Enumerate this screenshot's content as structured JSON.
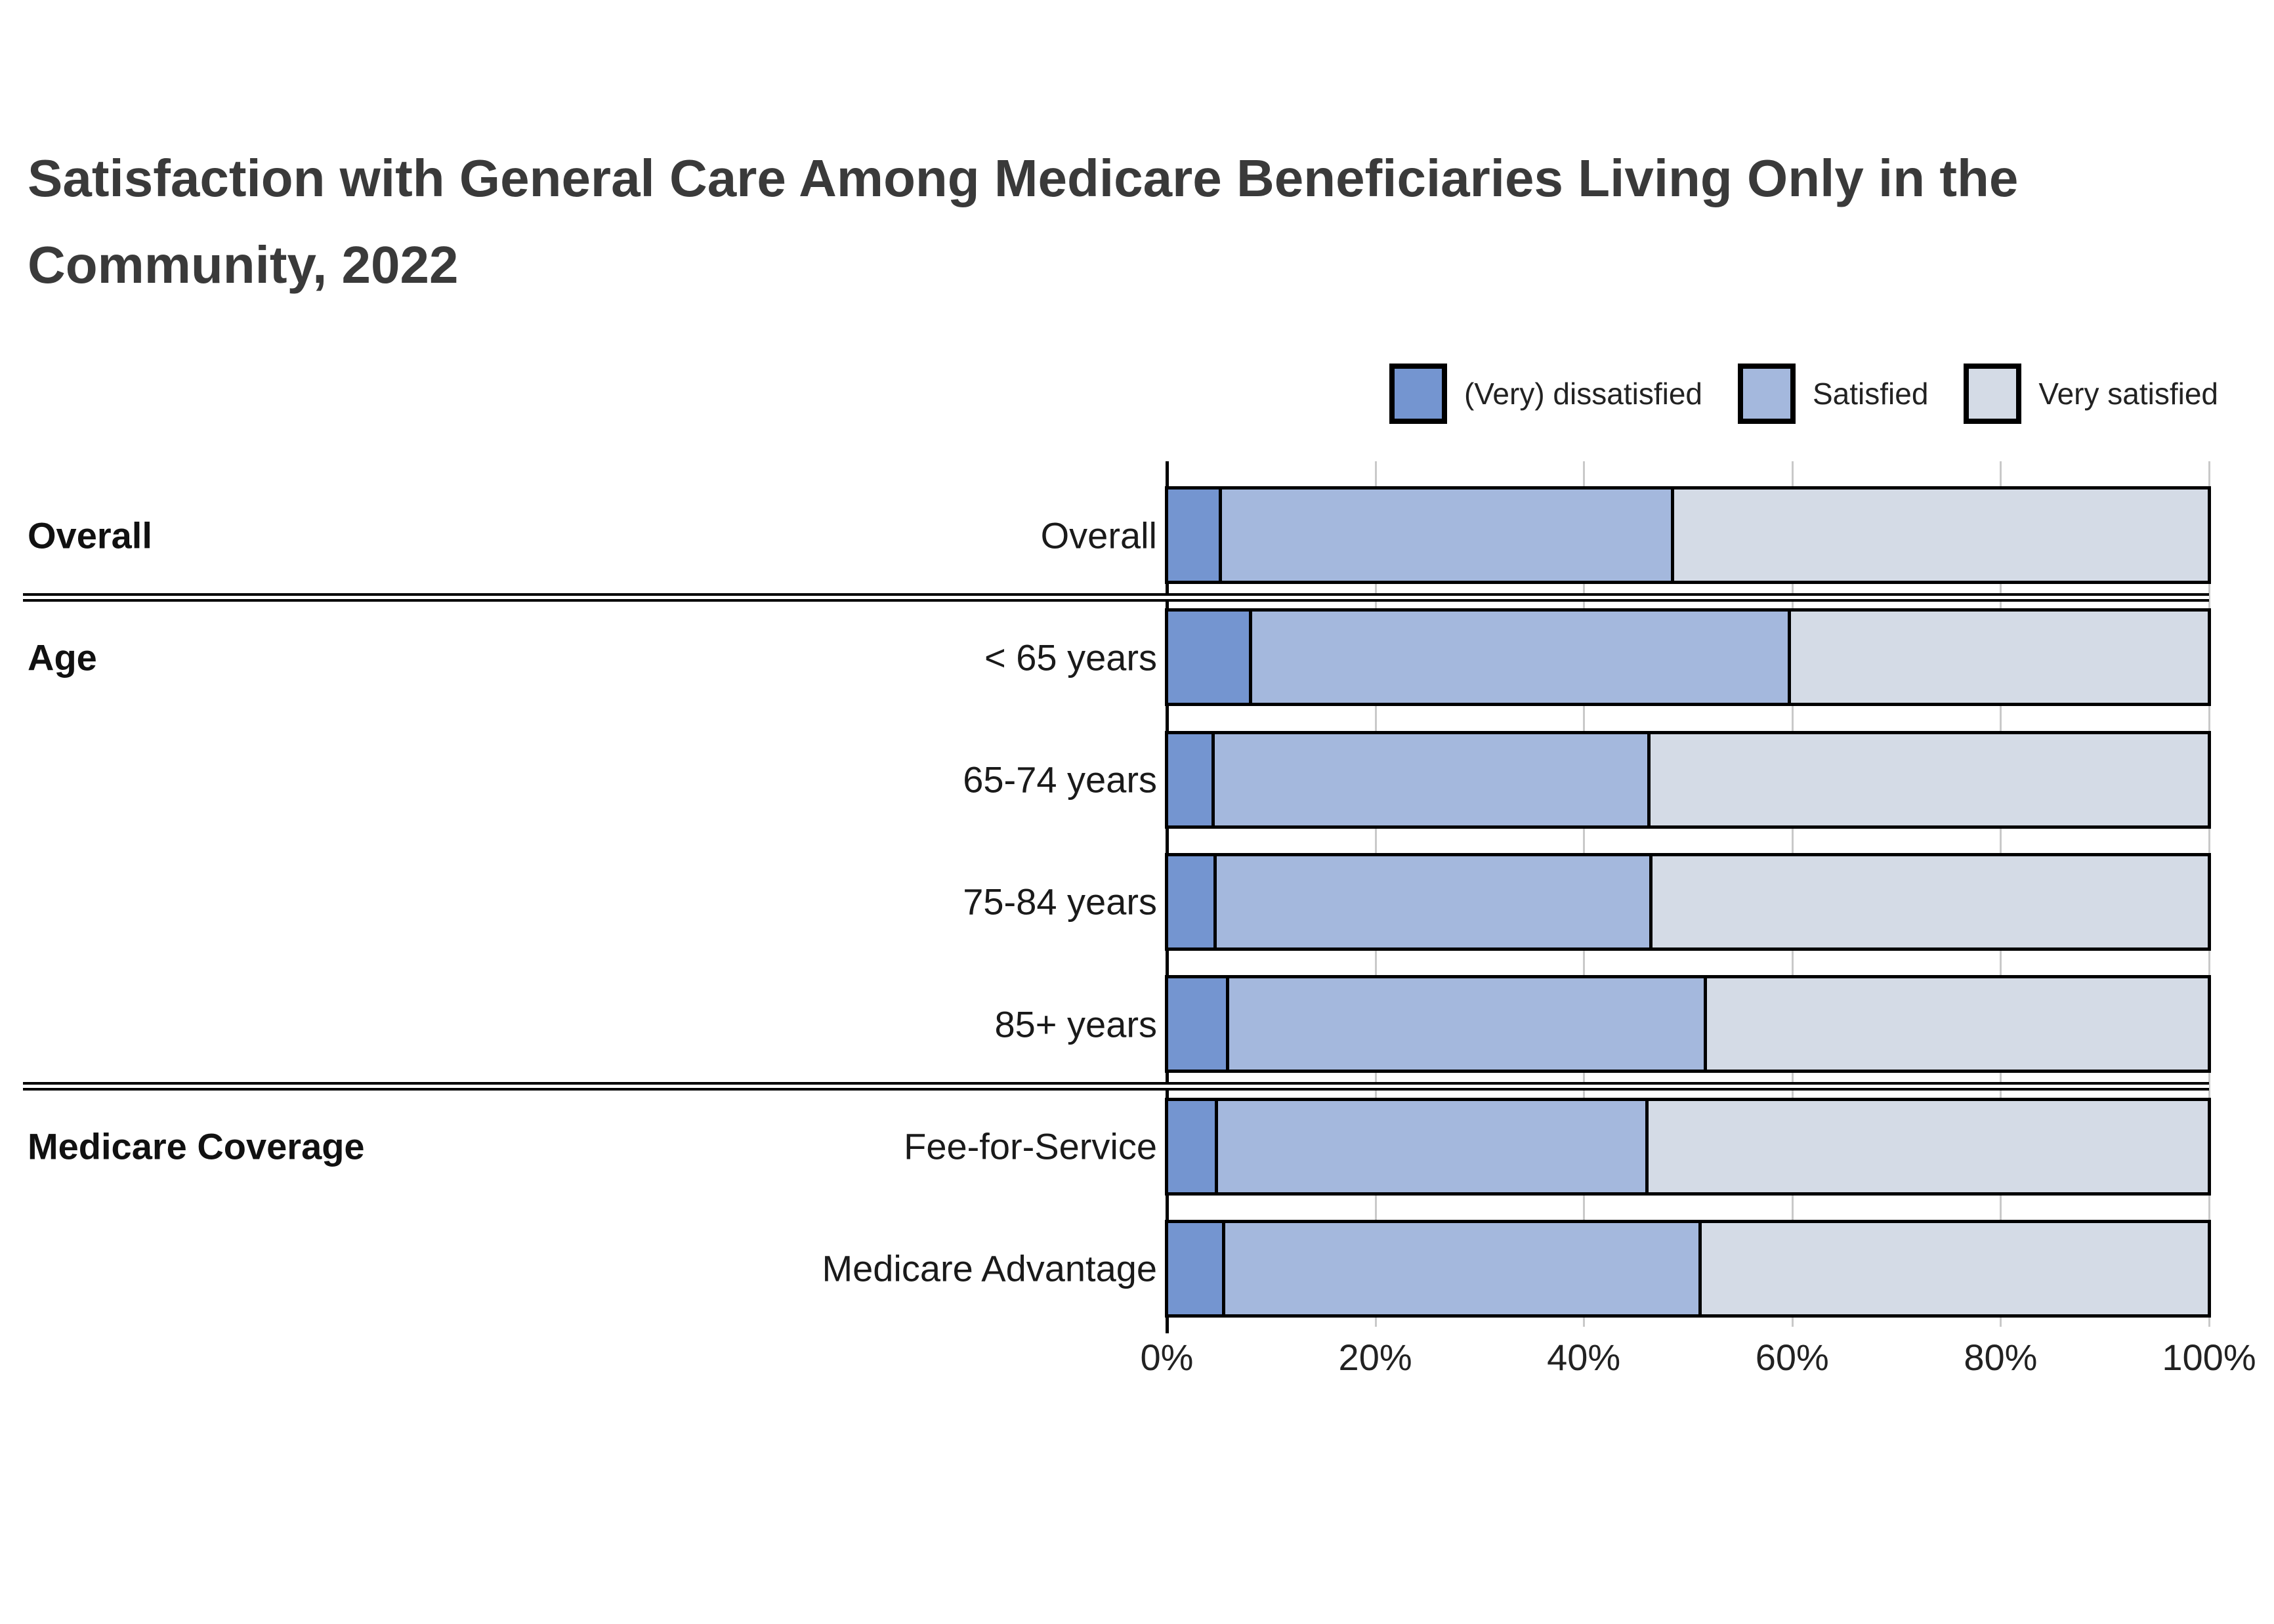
{
  "chart_data": {
    "type": "bar",
    "orientation": "horizontal",
    "stacked": true,
    "title": "Satisfaction with General Care Among Medicare Beneficiaries Living Only in the Community, 2022",
    "categories": [
      "Overall",
      "< 65 years",
      "65-74 years",
      "75-84 years",
      "85+ years",
      "Fee-for-Service",
      "Medicare Advantage"
    ],
    "series": [
      {
        "name": "(Very) dissatisfied",
        "color": "#7495d0",
        "values": [
          5.2,
          8.1,
          4.5,
          4.7,
          5.9,
          4.8,
          5.5
        ]
      },
      {
        "name": "Satisfied",
        "color": "#a4b8dd",
        "values": [
          43.5,
          51.8,
          41.9,
          41.9,
          45.9,
          41.4,
          45.8
        ]
      },
      {
        "name": "Very satisfied",
        "color": "#d4dbe6",
        "values": [
          51.3,
          40.1,
          53.6,
          53.4,
          48.2,
          53.8,
          48.7
        ]
      }
    ],
    "row_groups": [
      {
        "label": "Overall",
        "rows": [
          0
        ]
      },
      {
        "label": "Age",
        "rows": [
          1,
          2,
          3,
          4
        ]
      },
      {
        "label": "Medicare Coverage",
        "rows": [
          5,
          6
        ]
      }
    ],
    "x_ticks": [
      "0%",
      "20%",
      "40%",
      "60%",
      "80%",
      "100%"
    ],
    "x_tick_values": [
      0,
      20,
      40,
      60,
      80,
      100
    ],
    "xlim": [
      0,
      100
    ],
    "xlabel": "",
    "ylabel": "",
    "grid": "vertical",
    "legend_position": "top-right",
    "colors": {
      "bar_border": "#000000",
      "gridline": "#c9c9c9",
      "axis": "#000000",
      "title_text": "#3a3a3a",
      "label_text": "#1a1a1a"
    }
  }
}
